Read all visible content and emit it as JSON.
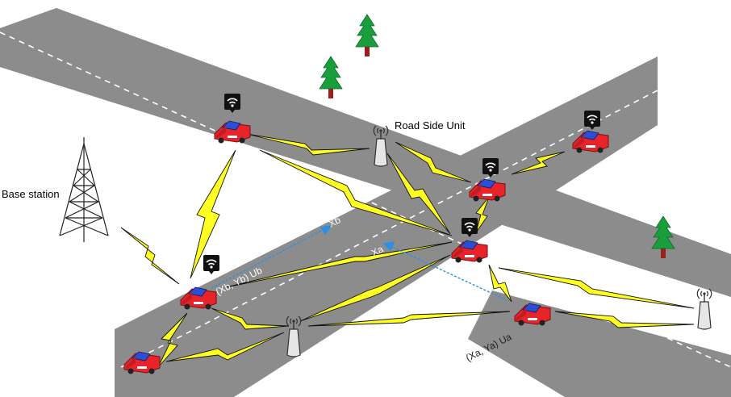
{
  "labels": {
    "base_station": "Base station",
    "road_side_unit": "Road Side Unit",
    "xb": "Xb",
    "xa": "Xa",
    "vehicle_b": "(Xb, Yb) Ub",
    "vehicle_a": "(Xa, Ya) Ua"
  },
  "colors": {
    "road": "#8c8c8c",
    "lane_marking": "#ffffff",
    "link": "#ffff22",
    "car_body": "#e8232a",
    "car_window": "#2a4fd6",
    "tree": "#1a9e3c",
    "trunk": "#9b1f1f",
    "arrow": "#2a8fe6"
  },
  "icons": {
    "tower": "lattice-tower-icon",
    "rsu": "antenna-unit-icon",
    "wifi": "wifi-icon",
    "car": "car-icon",
    "tree": "pine-tree-icon"
  }
}
